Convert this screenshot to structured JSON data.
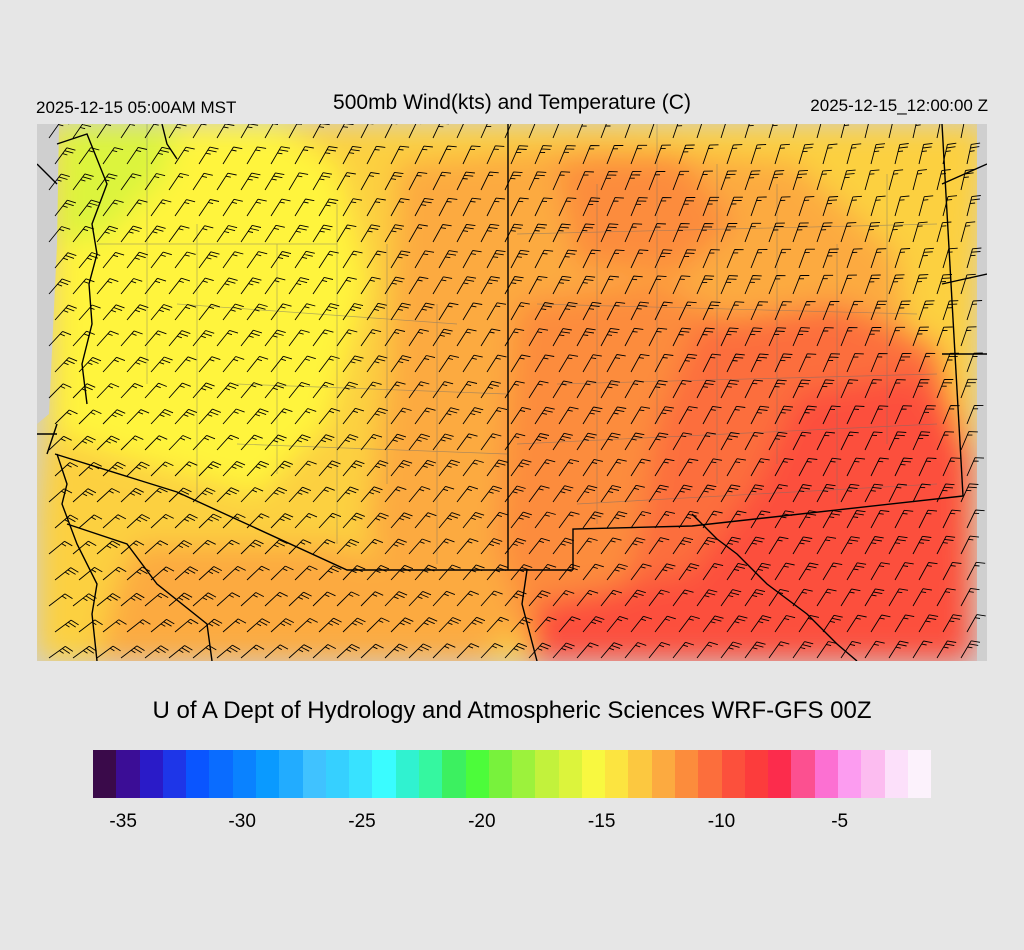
{
  "header": {
    "valid_local": "2025-12-15 05:00AM MST",
    "title": "500mb Wind(kts) and Temperature (C)",
    "valid_utc": "2025-12-15_12:00:00 Z"
  },
  "footer": {
    "credit": "U of A Dept of Hydrology and Atmospheric Sciences WRF-GFS 00Z"
  },
  "colorbar": {
    "colors": [
      "#3a0a4a",
      "#3b0d96",
      "#2a1bc8",
      "#1e36e8",
      "#0a55ff",
      "#0a6cff",
      "#0a82ff",
      "#0a9aff",
      "#22acff",
      "#40c2ff",
      "#36d0ff",
      "#38e2ff",
      "#3afcff",
      "#30f2d0",
      "#35f7a0",
      "#3cf060",
      "#4cfc3a",
      "#78f23c",
      "#9cf23c",
      "#c2f23c",
      "#dcf43c",
      "#f8f840",
      "#fce440",
      "#fcc840",
      "#fcaa40",
      "#fc8c3c",
      "#fc6e3c",
      "#fc503c",
      "#fc3c3c",
      "#fc2c4c",
      "#fc5090",
      "#fc70d2",
      "#fc9cf0",
      "#fcbcf0",
      "#fce0fa",
      "#fcf2fc"
    ],
    "tick_labels": [
      "-35",
      "-30",
      "-25",
      "-20",
      "-15",
      "-10",
      "-5"
    ]
  },
  "map": {
    "field": "500mb temperature (C) with wind barbs (kts)",
    "colors": {
      "background": "#cfcfcf",
      "yellow": "#fff43c",
      "light_yellow": "#f8f840",
      "gold": "#fcd040",
      "orange": "#fcaa40",
      "dark_orange": "#fc8c3c",
      "red_orange": "#fc6e3c",
      "red": "#fc503c",
      "green_yellow": "#dcf43c"
    }
  }
}
